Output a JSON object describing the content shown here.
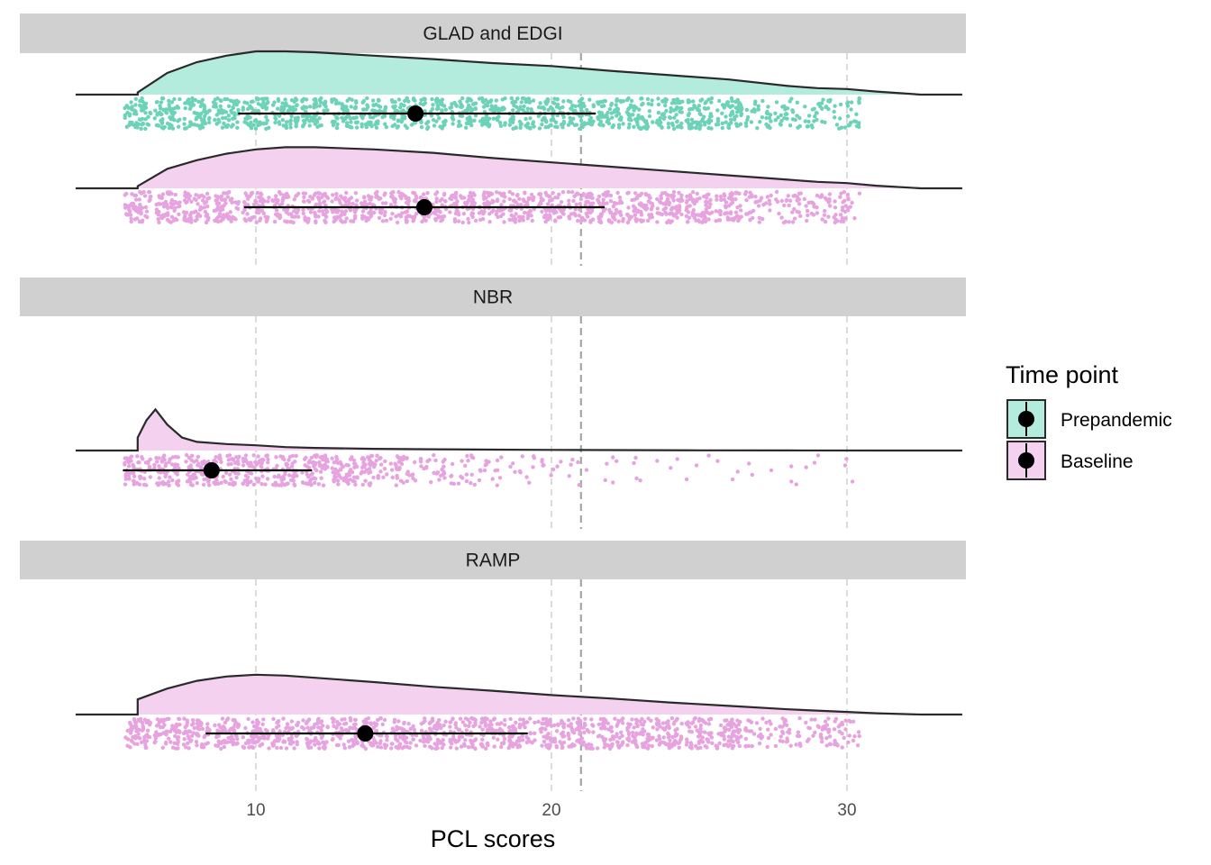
{
  "chart_data": {
    "type": "raincloud",
    "xlabel": "PCL scores",
    "xlim": [
      3.9,
      33.9
    ],
    "x_ticks": [
      10,
      20,
      30
    ],
    "x_tick_labels": [
      "10",
      "20",
      "30"
    ],
    "cutoff_line": 21,
    "grid": "vertical dashed major",
    "legend": {
      "title": "Time point",
      "position": "right",
      "items": [
        {
          "label": "Prepandemic",
          "color": "#6dd3b8"
        },
        {
          "label": "Baseline",
          "color": "#e7a3e0"
        }
      ]
    },
    "panels": [
      {
        "title": "GLAD and EDGI",
        "series": [
          {
            "group": "Prepandemic",
            "mean": 15.4,
            "ci": [
              9.4,
              21.5
            ],
            "density_x": [
              6,
              7,
              8,
              9,
              10,
              11,
              12,
              14,
              16,
              18,
              20,
              22,
              24,
              26,
              28,
              29,
              30,
              31,
              32.5
            ],
            "density_y": [
              0.05,
              0.5,
              0.75,
              0.9,
              1.0,
              1.0,
              0.98,
              0.9,
              0.82,
              0.73,
              0.66,
              0.55,
              0.45,
              0.35,
              0.2,
              0.15,
              0.13,
              0.07,
              0
            ]
          },
          {
            "group": "Baseline",
            "mean": 15.7,
            "ci": [
              9.6,
              21.8
            ],
            "density_x": [
              6,
              7,
              8,
              9,
              10,
              11,
              12,
              14,
              16,
              18,
              20,
              22,
              24,
              26,
              28,
              29,
              30,
              31,
              32.5
            ],
            "density_y": [
              0.05,
              0.45,
              0.65,
              0.8,
              0.9,
              0.95,
              0.95,
              0.9,
              0.82,
              0.7,
              0.6,
              0.5,
              0.4,
              0.3,
              0.2,
              0.15,
              0.12,
              0.06,
              0
            ]
          }
        ]
      },
      {
        "title": "NBR",
        "series": [
          {
            "group": "Baseline",
            "mean": 8.5,
            "ci": [
              5.5,
              11.9
            ],
            "density_x": [
              6,
              6.3,
              6.6,
              7,
              7.5,
              8,
              9,
              10,
              11,
              12,
              14,
              16,
              18,
              20,
              22,
              25,
              28,
              31
            ],
            "density_y": [
              0.3,
              0.7,
              0.95,
              0.6,
              0.3,
              0.2,
              0.15,
              0.12,
              0.08,
              0.06,
              0.04,
              0.03,
              0.02,
              0.015,
              0.01,
              0.005,
              0.003,
              0
            ]
          }
        ]
      },
      {
        "title": "RAMP",
        "series": [
          {
            "group": "Baseline",
            "mean": 13.7,
            "ci": [
              8.3,
              19.2
            ],
            "density_x": [
              6,
              7,
              8,
              9,
              10,
              11,
              12,
              14,
              16,
              18,
              20,
              22,
              24,
              26,
              28,
              30,
              31,
              32.5
            ],
            "density_y": [
              0.35,
              0.6,
              0.78,
              0.88,
              0.92,
              0.9,
              0.85,
              0.75,
              0.64,
              0.55,
              0.45,
              0.37,
              0.28,
              0.2,
              0.12,
              0.06,
              0.03,
              0
            ]
          }
        ]
      }
    ]
  }
}
